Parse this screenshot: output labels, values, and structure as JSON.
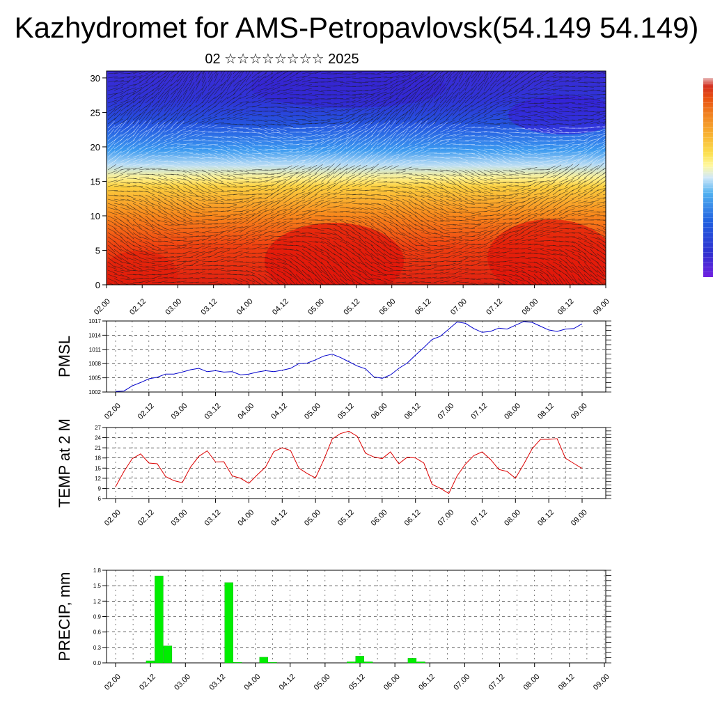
{
  "title": "Kazhydromet for AMS-Petropavlovsk(54.149 54.149)",
  "subtitle": "02 ☆☆☆☆☆☆☆☆ 2025",
  "colorbar_colors": [
    "#e8b8b8",
    "#d43020",
    "#e85010",
    "#f08020",
    "#f8b030",
    "#fce050",
    "#fff8a0",
    "#d0e8f8",
    "#50b0f0",
    "#2060e0",
    "#3030d0",
    "#7020e0"
  ],
  "chart_data": [
    {
      "name": "vertical-cross-section",
      "type": "heatmap",
      "xticks": [
        "02.00",
        "02.12",
        "03.00",
        "03.12",
        "04.00",
        "04.12",
        "05.00",
        "05.12",
        "06.00",
        "06.12",
        "07.00",
        "07.12",
        "08.00",
        "08.12",
        "09.00"
      ],
      "yticks": [
        "0",
        "5",
        "10",
        "15",
        "20",
        "25",
        "30"
      ],
      "ylim": [
        0,
        31
      ]
    },
    {
      "name": "pmsl",
      "type": "line",
      "ylabel": "PMSL",
      "ylim": [
        1002,
        1017
      ],
      "yticks": [
        "1002",
        "1005",
        "1008",
        "1011",
        "1014",
        "1017"
      ],
      "xticks": [
        "02.00",
        "02.12",
        "03.00",
        "03.12",
        "04.00",
        "04.12",
        "05.00",
        "05.12",
        "06.00",
        "06.12",
        "07.00",
        "07.12",
        "08.00",
        "08.12",
        "09.00"
      ],
      "color": "#0000cc",
      "values": [
        1002.1,
        1002.2,
        1003.3,
        1004.0,
        1004.8,
        1005.1,
        1005.8,
        1005.8,
        1006.2,
        1006.7,
        1007.0,
        1006.3,
        1006.5,
        1006.2,
        1006.3,
        1005.6,
        1005.8,
        1006.2,
        1006.5,
        1006.3,
        1006.6,
        1007.0,
        1008.0,
        1008.1,
        1008.8,
        1009.6,
        1010.0,
        1009.3,
        1008.4,
        1007.5,
        1006.9,
        1005.2,
        1004.9,
        1005.6,
        1007.0,
        1008.1,
        1009.8,
        1011.4,
        1013.1,
        1013.8,
        1015.3,
        1016.8,
        1016.5,
        1015.4,
        1014.6,
        1014.8,
        1015.5,
        1015.3,
        1016.1,
        1016.9,
        1016.7,
        1015.9,
        1015.1,
        1014.8,
        1015.3,
        1015.4,
        1016.4
      ]
    },
    {
      "name": "temp-2m",
      "type": "line",
      "ylabel": "TEMP at 2 M",
      "ylim": [
        6,
        27
      ],
      "yticks": [
        "6",
        "9",
        "12",
        "15",
        "18",
        "21",
        "24",
        "27"
      ],
      "xticks": [
        "02.00",
        "02.12",
        "03.00",
        "03.12",
        "04.00",
        "04.12",
        "05.00",
        "05.12",
        "06.00",
        "06.12",
        "07.00",
        "07.12",
        "08.00",
        "08.12",
        "09.00"
      ],
      "color": "#dd0000",
      "values": [
        9.5,
        14.0,
        17.8,
        19.2,
        16.5,
        16.3,
        12.5,
        11.3,
        10.7,
        15.3,
        18.5,
        20.1,
        16.8,
        16.9,
        12.7,
        12.0,
        10.5,
        13.0,
        15.3,
        19.9,
        21.0,
        20.2,
        15.0,
        13.4,
        12.1,
        17.5,
        23.6,
        25.2,
        25.9,
        24.4,
        19.4,
        18.3,
        17.8,
        19.8,
        16.3,
        18.2,
        18.0,
        16.5,
        10.2,
        9.0,
        7.5,
        12.7,
        16.2,
        18.7,
        19.8,
        17.6,
        14.6,
        14.0,
        12.0,
        16.2,
        20.7,
        23.5,
        23.5,
        23.7,
        17.9,
        16.4,
        14.9
      ]
    },
    {
      "name": "precip",
      "type": "bar",
      "ylabel": "PRECIP, mm",
      "ylim": [
        0,
        1.8
      ],
      "yticks": [
        "0.0",
        "0.3",
        "0.6",
        "0.9",
        "1.2",
        "1.5",
        "1.8"
      ],
      "xticks": [
        "02.00",
        "02.12",
        "03.00",
        "03.12",
        "04.00",
        "04.12",
        "05.00",
        "05.12",
        "06.00",
        "06.12",
        "07.00",
        "07.12",
        "08.00",
        "08.12",
        "09.00"
      ],
      "color": "#00ee00",
      "values": [
        0,
        0,
        0,
        0,
        0.04,
        1.69,
        0.33,
        0,
        0,
        0,
        0,
        0,
        0,
        1.56,
        0.01,
        0,
        0,
        0.11,
        0.01,
        0,
        0,
        0,
        0,
        0,
        0,
        0,
        0,
        0.02,
        0.13,
        0.02,
        0,
        0,
        0,
        0,
        0.09,
        0.02,
        0,
        0,
        0,
        0,
        0,
        0,
        0,
        0,
        0,
        0,
        0,
        0,
        0,
        0,
        0,
        0,
        0,
        0,
        0,
        0,
        0
      ]
    }
  ]
}
